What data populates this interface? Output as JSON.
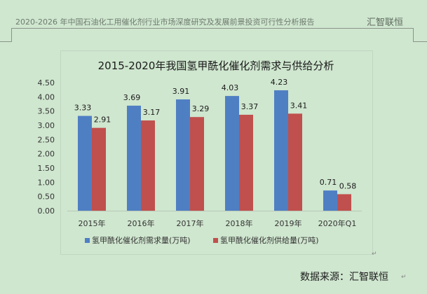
{
  "header": {
    "report_title": "2020-2026 年中国石油化工用催化剂行业市场深度研究及发展前景投资可行性分析报告",
    "brand": "汇智联恒"
  },
  "source_note": "数据来源：汇智联恒",
  "chart_data": {
    "type": "bar",
    "title": "2015-2020年我国氢甲酰化催化剂需求与供给分析",
    "categories": [
      "2015年",
      "2016年",
      "2017年",
      "2018年",
      "2019年",
      "2020年Q1"
    ],
    "series": [
      {
        "name": "氢甲酰化催化剂需求量(万吨)",
        "values": [
          3.33,
          3.69,
          3.91,
          4.03,
          4.23,
          0.71
        ],
        "color": "#4f7fc3"
      },
      {
        "name": "氢甲酰化催化剂供给量(万吨)",
        "values": [
          2.91,
          3.17,
          3.29,
          3.37,
          3.41,
          0.58
        ],
        "color": "#c0504d"
      }
    ],
    "y_ticks": [
      "0.00",
      "0.50",
      "1.00",
      "1.50",
      "2.00",
      "2.50",
      "3.00",
      "3.50",
      "4.00",
      "4.50"
    ],
    "ylim": [
      0,
      4.5
    ],
    "grid": false,
    "legend_position": "bottom"
  }
}
